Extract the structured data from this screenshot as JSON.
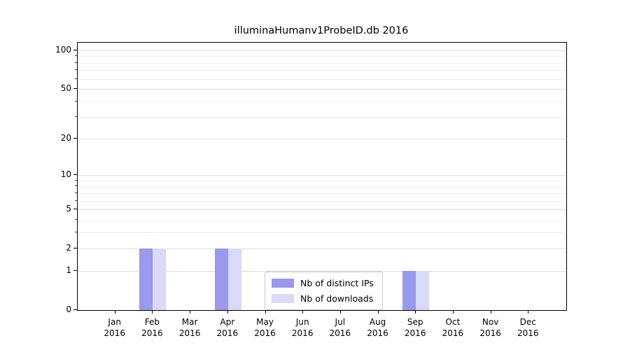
{
  "chart_data": {
    "type": "bar",
    "title": "illuminaHumanv1ProbeID.db 2016",
    "categories": [
      "Jan 2016",
      "Feb 2016",
      "Mar 2016",
      "Apr 2016",
      "May 2016",
      "Jun 2016",
      "Jul 2016",
      "Aug 2016",
      "Sep 2016",
      "Oct 2016",
      "Nov 2016",
      "Dec 2016"
    ],
    "series": [
      {
        "name": "Nb of distinct IPs",
        "color": "#9999ee",
        "values": [
          0,
          2,
          0,
          2,
          0,
          0,
          0,
          0,
          1,
          0,
          0,
          0
        ]
      },
      {
        "name": "Nb of downloads",
        "color": "#d9d9f8",
        "values": [
          0,
          2,
          0,
          2,
          0,
          0,
          0,
          0,
          1,
          0,
          0,
          0
        ]
      }
    ],
    "xlabel": "",
    "ylabel": "",
    "yscale": "log1p",
    "ylim": [
      0,
      115
    ],
    "yticks": [
      0,
      1,
      2,
      5,
      10,
      20,
      50,
      100
    ],
    "minor_yticks": [
      3,
      4,
      6,
      7,
      8,
      9,
      30,
      40,
      60,
      70,
      80,
      90
    ],
    "grid": "horizontal",
    "legend_position": "inside-bottom-center"
  }
}
